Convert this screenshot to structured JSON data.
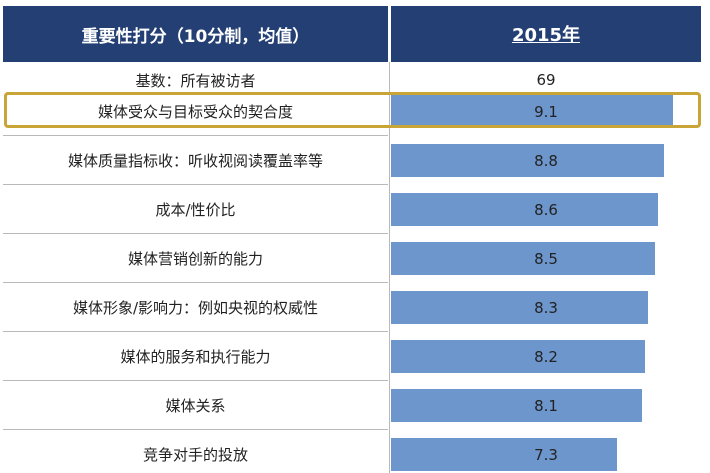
{
  "chart_data": {
    "type": "bar",
    "orientation": "horizontal",
    "column_header": "重要性打分（10分制，均值）",
    "series_name": "2015年",
    "base_label": "基数：所有被访者",
    "base_value": "69",
    "categories": [
      "媒体受众与目标受众的契合度",
      "媒体质量指标收：听收视阅读覆盖率等",
      "成本/性价比",
      "媒体营销创新的能力",
      "媒体形象/影响力：例如央视的权威性",
      "媒体的服务和执行能力",
      "媒体关系",
      "竞争对手的投放"
    ],
    "values": [
      9.1,
      8.8,
      8.6,
      8.5,
      8.3,
      8.2,
      8.1,
      7.3
    ],
    "xlim": [
      0,
      10
    ],
    "highlighted_category": "媒体受众与目标受众的契合度",
    "colors": {
      "header_bg": "#243f73",
      "bar": "#6d96cc",
      "highlight_border": "#c9a437"
    }
  }
}
